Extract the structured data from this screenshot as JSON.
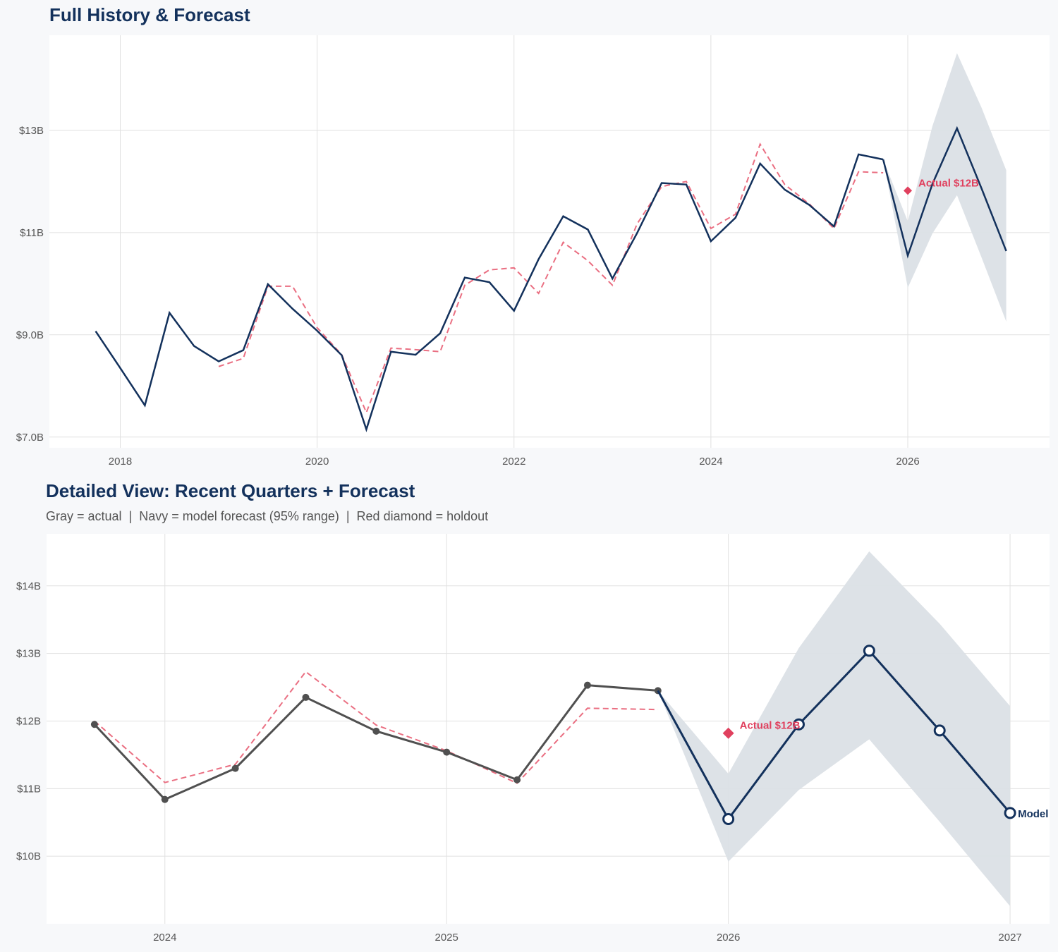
{
  "colors": {
    "navy": "#13315c",
    "gray": "#505050",
    "dashed": "#ea6f82",
    "holdout": "#e0405e",
    "band": "#dbe0e6",
    "grid": "#e1e1e1",
    "background": "#f7f8fa"
  },
  "chart_data": [
    {
      "type": "line",
      "title": "Full History & Forecast",
      "xlim": [
        2017.28,
        2027.44
      ],
      "ylim": [
        6.79,
        14.86
      ],
      "x_ticks": [
        2018,
        2020,
        2022,
        2024,
        2026
      ],
      "x_tick_labels": [
        "2018",
        "2020",
        "2022",
        "2024",
        "2026"
      ],
      "y_ticks": [
        7,
        9,
        11,
        13
      ],
      "y_tick_labels": [
        "$7.0B",
        "$9.0B",
        "$11B",
        "$13B"
      ],
      "grid": true,
      "actual": {
        "x_start": 2017.75,
        "values": [
          9.07,
          8.35,
          7.62,
          9.43,
          8.78,
          8.48,
          8.7,
          9.99,
          9.51,
          9.08,
          8.6,
          7.15,
          8.67,
          8.61,
          9.03,
          10.12,
          10.03,
          9.47,
          10.48,
          11.32,
          11.06,
          10.1,
          10.99,
          11.97,
          11.94,
          10.83,
          11.29,
          12.35,
          11.84,
          11.54,
          11.12,
          12.53,
          12.43
        ]
      },
      "dashed": {
        "x_start": 2019.0,
        "values": [
          8.38,
          8.54,
          9.95,
          9.95,
          9.14,
          8.61,
          7.48,
          8.74,
          8.71,
          8.67,
          9.97,
          10.27,
          10.31,
          9.81,
          10.81,
          10.45,
          9.97,
          11.17,
          11.9,
          12.0,
          11.08,
          11.36,
          12.73,
          11.94,
          11.56,
          11.08,
          12.19,
          12.17
        ]
      },
      "forecast": {
        "x": [
          2026.0,
          2026.25,
          2026.5,
          2026.75,
          2027.0
        ],
        "values": [
          10.55,
          11.95,
          13.04,
          11.86,
          10.64
        ],
        "lower": [
          9.92,
          10.98,
          11.73,
          10.51,
          9.26
        ],
        "upper": [
          11.22,
          13.08,
          14.51,
          13.44,
          12.22
        ]
      },
      "holdout": {
        "x": 2026.0,
        "value": 11.82,
        "label": "Actual $12B"
      },
      "history_markers": false
    },
    {
      "type": "line",
      "title": "Detailed View: Recent Quarters + Forecast",
      "subtitle": "Gray = actual  |  Navy = model forecast (95% range)  |  Red diamond = holdout",
      "xlim": [
        2023.58,
        2027.14
      ],
      "ylim": [
        9.0,
        14.77
      ],
      "x_ticks": [
        2024,
        2025,
        2026,
        2027
      ],
      "x_tick_labels": [
        "2024",
        "2025",
        "2026",
        "2027"
      ],
      "y_ticks": [
        10,
        11,
        12,
        13,
        14
      ],
      "y_tick_labels": [
        "$10B",
        "$11B",
        "$12B",
        "$13B",
        "$14B"
      ],
      "grid": true,
      "actual": {
        "x_start": 2023.75,
        "values": [
          11.95,
          10.84,
          11.3,
          12.35,
          11.85,
          11.54,
          11.13,
          12.53,
          12.45
        ]
      },
      "dashed": {
        "x_start": 2023.75,
        "values": [
          12.0,
          11.09,
          11.36,
          12.73,
          11.94,
          11.56,
          11.08,
          12.19,
          12.17
        ]
      },
      "forecast": {
        "x": [
          2026.0,
          2026.25,
          2026.5,
          2026.75,
          2027.0
        ],
        "values": [
          10.55,
          11.95,
          13.04,
          11.86,
          10.64
        ],
        "lower": [
          9.92,
          10.98,
          11.73,
          10.51,
          9.26
        ],
        "upper": [
          11.22,
          13.08,
          14.51,
          13.44,
          12.22
        ],
        "end_label": "Model"
      },
      "holdout": {
        "x": 2026.0,
        "value": 11.82,
        "label": "Actual $12B"
      },
      "history_markers": true
    }
  ]
}
